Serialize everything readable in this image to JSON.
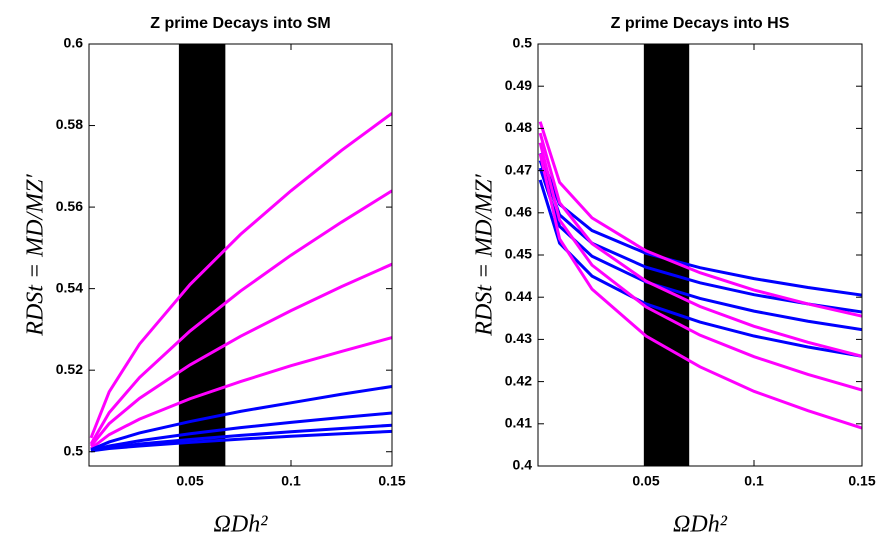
{
  "chart_data": [
    {
      "type": "line",
      "title": "Z prime Decays into SM",
      "xlabel": "ΩDh²",
      "ylabel": "RDSt = MD/MZ′",
      "x": [
        0.001,
        0.01,
        0.025,
        0.05,
        0.075,
        0.1,
        0.125,
        0.15
      ],
      "xlim": [
        0,
        0.15
      ],
      "xticks": [
        0.05,
        0.1,
        0.15
      ],
      "ylim": [
        0.4965,
        0.6
      ],
      "yticks": [
        0.5,
        0.52,
        0.54,
        0.56,
        0.58,
        0.6
      ],
      "shaded_x": [
        0.0445,
        0.0675
      ],
      "shade_color": "#000000",
      "series": [
        {
          "color": "#ff00ff",
          "values": [
            0.5034,
            0.5147,
            0.5264,
            0.541,
            0.5533,
            0.564,
            0.5739,
            0.583
          ]
        },
        {
          "color": "#ff00ff",
          "values": [
            0.5019,
            0.5096,
            0.5182,
            0.5296,
            0.5394,
            0.5482,
            0.5563,
            0.564
          ]
        },
        {
          "color": "#ff00ff",
          "values": [
            0.5014,
            0.5069,
            0.5131,
            0.5213,
            0.5283,
            0.5346,
            0.5405,
            0.546
          ]
        },
        {
          "color": "#ff00ff",
          "values": [
            0.5008,
            0.5042,
            0.508,
            0.513,
            0.5172,
            0.5211,
            0.5246,
            0.528
          ]
        },
        {
          "color": "#0000ff",
          "values": [
            0.5005,
            0.5024,
            0.5046,
            0.5074,
            0.5099,
            0.512,
            0.5141,
            0.516
          ]
        },
        {
          "color": "#0000ff",
          "values": [
            0.5003,
            0.5014,
            0.5027,
            0.5044,
            0.5059,
            0.5072,
            0.5084,
            0.5095
          ]
        },
        {
          "color": "#0000ff",
          "values": [
            0.5002,
            0.501,
            0.5019,
            0.503,
            0.504,
            0.5049,
            0.5057,
            0.5065
          ]
        },
        {
          "color": "#0000ff",
          "values": [
            0.5002,
            0.5008,
            0.5014,
            0.5023,
            0.5031,
            0.5038,
            0.5044,
            0.505
          ]
        }
      ]
    },
    {
      "type": "line",
      "title": "Z prime Decays into HS",
      "xlabel": "ΩDh²",
      "ylabel": "RDSt = MD/MZ′",
      "x": [
        0.001,
        0.01,
        0.025,
        0.05,
        0.075,
        0.1,
        0.125,
        0.15
      ],
      "xlim": [
        0,
        0.15
      ],
      "xticks": [
        0.05,
        0.1,
        0.15
      ],
      "ylim": [
        0.4,
        0.5
      ],
      "yticks": [
        0.4,
        0.41,
        0.42,
        0.43,
        0.44,
        0.45,
        0.46,
        0.47,
        0.48,
        0.49,
        0.5
      ],
      "shaded_x": [
        0.049,
        0.07
      ],
      "shade_color": "#000000",
      "series": [
        {
          "color": "#0000ff",
          "values": [
            0.4741,
            0.462,
            0.4558,
            0.4504,
            0.447,
            0.4444,
            0.4423,
            0.4405
          ]
        },
        {
          "color": "#0000ff",
          "values": [
            0.4724,
            0.4595,
            0.4528,
            0.4471,
            0.4434,
            0.4406,
            0.4384,
            0.4365
          ]
        },
        {
          "color": "#0000ff",
          "values": [
            0.4706,
            0.4568,
            0.4497,
            0.4436,
            0.4397,
            0.4367,
            0.4343,
            0.4323
          ]
        },
        {
          "color": "#0000ff",
          "values": [
            0.4678,
            0.4528,
            0.445,
            0.4384,
            0.4341,
            0.4308,
            0.4282,
            0.426
          ]
        },
        {
          "color": "#ff00ff",
          "values": [
            0.4816,
            0.4672,
            0.4588,
            0.451,
            0.4458,
            0.4417,
            0.4384,
            0.4355
          ]
        },
        {
          "color": "#ff00ff",
          "values": [
            0.4789,
            0.4624,
            0.4527,
            0.4438,
            0.4378,
            0.4331,
            0.4293,
            0.426
          ]
        },
        {
          "color": "#ff00ff",
          "values": [
            0.4766,
            0.4583,
            0.4476,
            0.4377,
            0.431,
            0.4259,
            0.4217,
            0.418
          ]
        },
        {
          "color": "#ff00ff",
          "values": [
            0.474,
            0.4538,
            0.4419,
            0.4308,
            0.4235,
            0.4177,
            0.4131,
            0.409
          ]
        }
      ]
    }
  ]
}
